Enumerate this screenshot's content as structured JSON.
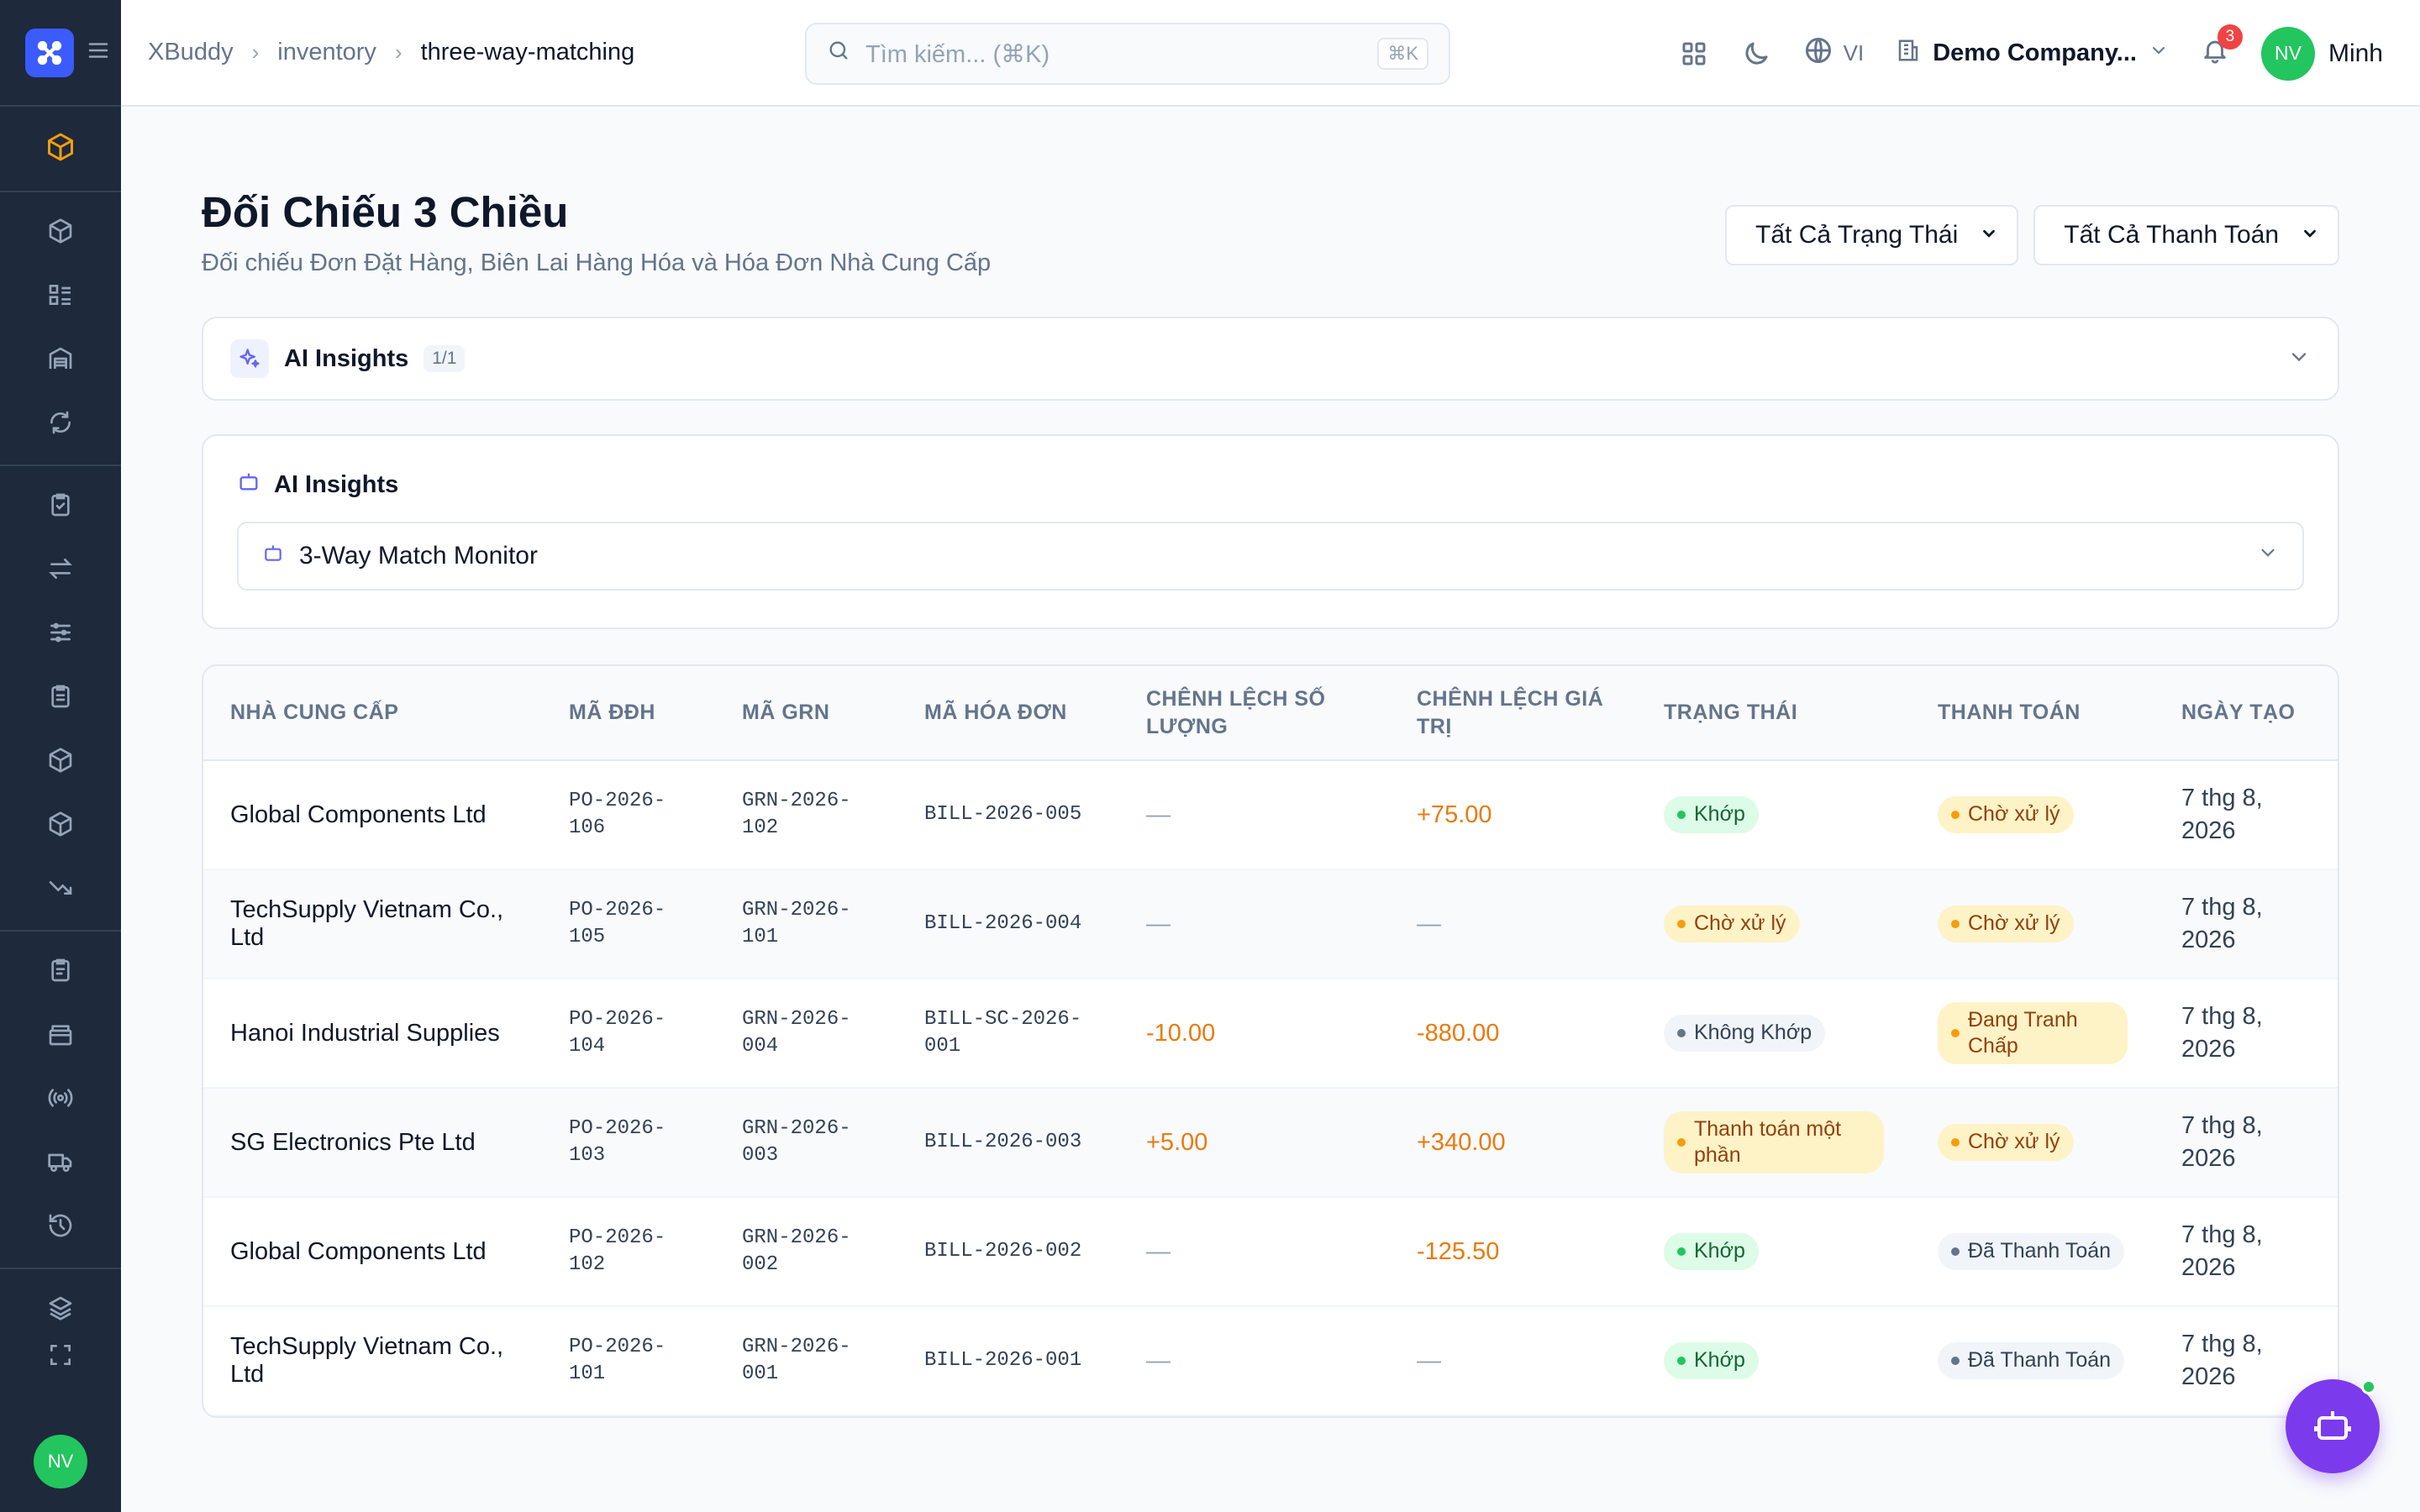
{
  "header": {
    "breadcrumb": [
      "XBuddy",
      "inventory",
      "three-way-matching"
    ],
    "search_placeholder": "Tìm kiếm... (⌘K)",
    "search_shortcut": "⌘K",
    "language": "VI",
    "company": "Demo Company...",
    "notification_count": "3",
    "user_initials": "NV",
    "user_name": "Minh"
  },
  "sidebar": {
    "avatar_initials": "NV",
    "active_color": "#f59e0b"
  },
  "page": {
    "title": "Đối Chiếu 3 Chiều",
    "subtitle": "Đối chiếu Đơn Đặt Hàng, Biên Lai Hàng Hóa và Hóa Đơn Nhà Cung Cấp",
    "filter_status": "Tất Cả Trạng Thái",
    "filter_payment": "Tất Cả Thanh Toán"
  },
  "insights": {
    "label": "AI Insights",
    "count": "1/1",
    "card_title": "AI Insights",
    "monitor": "3-Way Match Monitor"
  },
  "table": {
    "columns": [
      "NHÀ CUNG CẤP",
      "MÃ ĐĐH",
      "MÃ GRN",
      "MÃ HÓA ĐƠN",
      "CHÊNH LỆCH SỐ LƯỢNG",
      "CHÊNH LỆCH GIÁ TRỊ",
      "TRẠNG THÁI",
      "THANH TOÁN",
      "NGÀY TẠO"
    ],
    "rows": [
      {
        "supplier": "Global Components Ltd",
        "po": "PO-2026-106",
        "grn": "GRN-2026-102",
        "bill": "BILL-2026-005",
        "qty_diff": "—",
        "value_diff": "+75.00",
        "status": "Khớp",
        "payment": "Chờ xử lý",
        "date": "7 thg 8, 2026"
      },
      {
        "supplier": "TechSupply Vietnam Co., Ltd",
        "po": "PO-2026-105",
        "grn": "GRN-2026-101",
        "bill": "BILL-2026-004",
        "qty_diff": "—",
        "value_diff": "—",
        "status": "Chờ xử lý",
        "payment": "Chờ xử lý",
        "date": "7 thg 8, 2026"
      },
      {
        "supplier": "Hanoi Industrial Supplies",
        "po": "PO-2026-104",
        "grn": "GRN-2026-004",
        "bill": "BILL-SC-2026-001",
        "qty_diff": "-10.00",
        "value_diff": "-880.00",
        "status": "Không Khớp",
        "payment": "Đang Tranh Chấp",
        "date": "7 thg 8, 2026"
      },
      {
        "supplier": "SG Electronics Pte Ltd",
        "po": "PO-2026-103",
        "grn": "GRN-2026-003",
        "bill": "BILL-2026-003",
        "qty_diff": "+5.00",
        "value_diff": "+340.00",
        "status": "Thanh toán một phần",
        "payment": "Chờ xử lý",
        "date": "7 thg 8, 2026"
      },
      {
        "supplier": "Global Components Ltd",
        "po": "PO-2026-102",
        "grn": "GRN-2026-002",
        "bill": "BILL-2026-002",
        "qty_diff": "—",
        "value_diff": "-125.50",
        "status": "Khớp",
        "payment": "Đã Thanh Toán",
        "date": "7 thg 8, 2026"
      },
      {
        "supplier": "TechSupply Vietnam Co., Ltd",
        "po": "PO-2026-101",
        "grn": "GRN-2026-001",
        "bill": "BILL-2026-001",
        "qty_diff": "—",
        "value_diff": "—",
        "status": "Khớp",
        "payment": "Đã Thanh Toán",
        "date": "7 thg 8, 2026"
      }
    ]
  }
}
